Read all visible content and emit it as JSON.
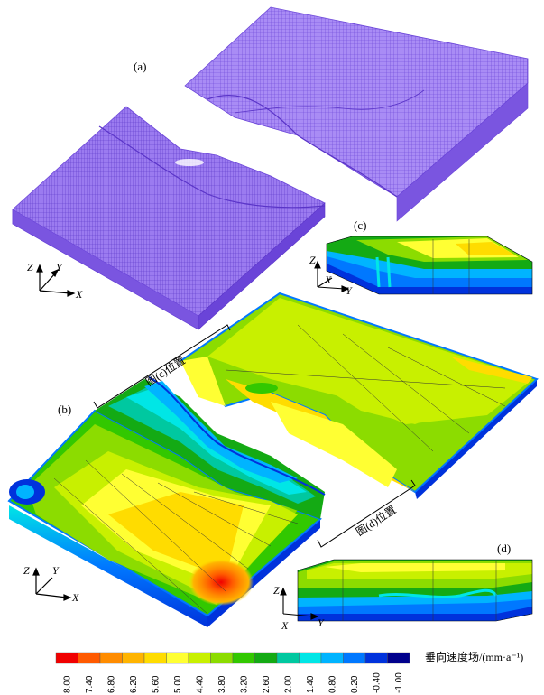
{
  "panels": {
    "a": "(a)",
    "b": "(b)",
    "c": "(c)",
    "d": "(d)"
  },
  "axes": {
    "x": "X",
    "y": "Y",
    "z": "Z"
  },
  "callouts": {
    "c_location": "图(c)位置",
    "d_location": "图(d)位置"
  },
  "colorbar": {
    "title": "垂向速度场/(mm·a⁻¹)",
    "ticks": [
      "8.00",
      "7.40",
      "6.80",
      "6.20",
      "5.60",
      "5.00",
      "4.40",
      "3.80",
      "3.20",
      "2.60",
      "2.00",
      "1.40",
      "0.80",
      "0.20",
      "-0.40",
      "-1.00"
    ],
    "colors": [
      "#f00000",
      "#ff5a00",
      "#ff8c00",
      "#ffb400",
      "#ffdc00",
      "#ffff33",
      "#c8f000",
      "#8cdc00",
      "#32c800",
      "#14aa14",
      "#00c8a0",
      "#00e6e6",
      "#00b4ff",
      "#0078ff",
      "#0032dc",
      "#00008c"
    ]
  },
  "mesh_color": "#9b7bf0",
  "mesh_line_color": "#6a44d8"
}
